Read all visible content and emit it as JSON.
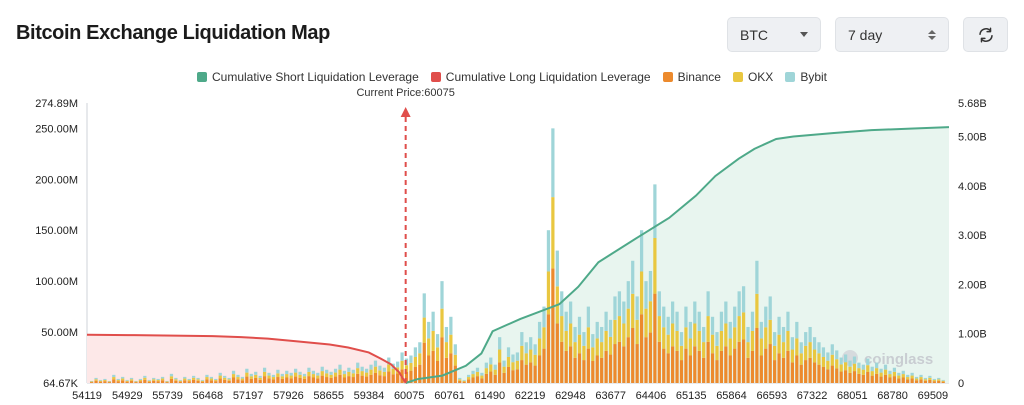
{
  "header": {
    "title": "Bitcoin Exchange Liquidation Map",
    "asset_select": "BTC",
    "range_select": "7 day",
    "refresh_icon": "refresh-icon"
  },
  "colors": {
    "short": "#4ea989",
    "long": "#e04e4b",
    "binance": "#ec8a2d",
    "okx": "#e9c740",
    "bybit": "#9fd5d8",
    "short_fill": "#e8f5ef",
    "long_fill": "#fde8e8"
  },
  "watermark": "coinglass",
  "chart_data": {
    "type": "bar",
    "legend": [
      {
        "key": "short",
        "label": "Cumulative Short Liquidation Leverage"
      },
      {
        "key": "long",
        "label": "Cumulative Long Liquidation Leverage"
      },
      {
        "key": "binance",
        "label": "Binance"
      },
      {
        "key": "okx",
        "label": "OKX"
      },
      {
        "key": "bybit",
        "label": "Bybit"
      }
    ],
    "legend_position": "top-center",
    "current_price_label": "Current Price:60075",
    "current_price": 60075,
    "y_left": {
      "ticks": [
        "64.67K",
        "50.00M",
        "100.00M",
        "150.00M",
        "200.00M",
        "250.00M",
        "274.89M"
      ],
      "tick_values": [
        0,
        50,
        100,
        150,
        200,
        250,
        274.89
      ],
      "range": [
        0,
        274.89
      ],
      "unit": "M"
    },
    "y_right": {
      "ticks": [
        "0",
        "1.00B",
        "2.00B",
        "3.00B",
        "4.00B",
        "5.00B",
        "5.68B"
      ],
      "tick_values": [
        0,
        1,
        2,
        3,
        4,
        5,
        5.68
      ],
      "range": [
        0,
        5.68
      ],
      "unit": "B"
    },
    "x": {
      "tick_labels": [
        "54119",
        "54929",
        "55739",
        "56468",
        "57197",
        "57926",
        "58655",
        "59384",
        "60075",
        "60761",
        "61490",
        "62219",
        "62948",
        "63677",
        "64406",
        "65135",
        "65864",
        "66593",
        "67322",
        "68051",
        "68780",
        "69509"
      ],
      "range": [
        54119,
        70230
      ]
    },
    "bars": {
      "totals": [
        2,
        5,
        3,
        4,
        2,
        8,
        4,
        6,
        3,
        5,
        2,
        4,
        7,
        3,
        5,
        4,
        6,
        2,
        9,
        5,
        3,
        6,
        4,
        7,
        5,
        3,
        8,
        6,
        4,
        10,
        7,
        5,
        12,
        8,
        6,
        14,
        9,
        11,
        7,
        15,
        10,
        8,
        13,
        9,
        12,
        10,
        14,
        11,
        9,
        15,
        12,
        10,
        16,
        13,
        11,
        14,
        18,
        12,
        15,
        13,
        20,
        16,
        14,
        18,
        22,
        17,
        15,
        25,
        19,
        21,
        30,
        24,
        27,
        35,
        40,
        88,
        60,
        70,
        48,
        100,
        55,
        65,
        38,
        5,
        3,
        8,
        12,
        15,
        10,
        20,
        25,
        18,
        45,
        22,
        35,
        28,
        30,
        50,
        40,
        45,
        38,
        60,
        75,
        150,
        250,
        130,
        90,
        70,
        80,
        55,
        65,
        50,
        75,
        48,
        60,
        55,
        70,
        62,
        85,
        90,
        80,
        100,
        120,
        85,
        150,
        100,
        110,
        195,
        90,
        75,
        65,
        80,
        70,
        50,
        75,
        60,
        80,
        70,
        55,
        90,
        65,
        50,
        70,
        80,
        60,
        75,
        90,
        95,
        55,
        70,
        120,
        60,
        75,
        85,
        50,
        65,
        55,
        70,
        45,
        60,
        40,
        50,
        55,
        45,
        40,
        35,
        30,
        38,
        32,
        25,
        28,
        22,
        26,
        20,
        18,
        24,
        16,
        20,
        14,
        18,
        12,
        15,
        10,
        12,
        8,
        10,
        6,
        8,
        5,
        7,
        4,
        5,
        3
      ],
      "series_share": {
        "binance": 0.45,
        "okx": 0.28,
        "bybit": 0.27
      }
    },
    "cumulative_long": {
      "x": [
        54119,
        55000,
        55739,
        56468,
        57000,
        57500,
        58000,
        58655,
        59000,
        59384,
        59600,
        59800,
        59950,
        60075
      ],
      "y_billions": [
        0.98,
        0.97,
        0.96,
        0.95,
        0.93,
        0.9,
        0.85,
        0.78,
        0.72,
        0.62,
        0.5,
        0.38,
        0.22,
        0.0
      ]
    },
    "cumulative_short": {
      "x": [
        60075,
        60300,
        60761,
        61200,
        61490,
        61700,
        62219,
        62948,
        63300,
        63677,
        64406,
        65000,
        65500,
        65864,
        66300,
        66593,
        67000,
        67322,
        68051,
        68780,
        69509,
        70230
      ],
      "y_billions": [
        0.0,
        0.08,
        0.15,
        0.35,
        0.6,
        1.05,
        1.3,
        1.6,
        1.95,
        2.45,
        2.95,
        3.35,
        3.8,
        4.2,
        4.55,
        4.75,
        4.95,
        5.0,
        5.07,
        5.13,
        5.16,
        5.19
      ]
    }
  }
}
